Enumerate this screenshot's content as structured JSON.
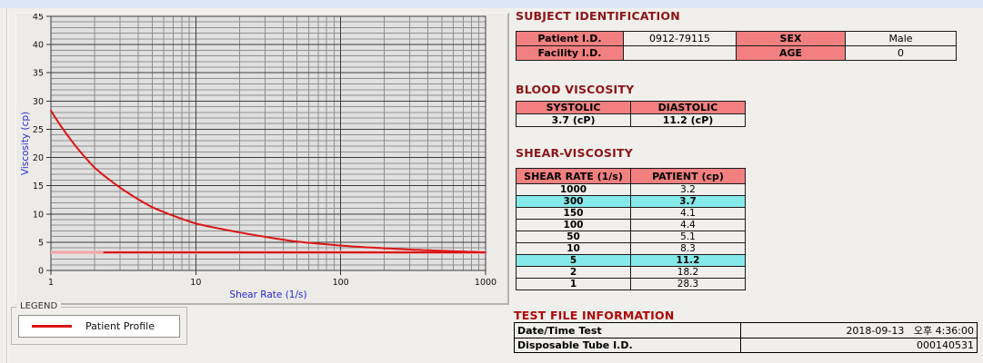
{
  "subject_identification": {
    "title": "SUBJECT IDENTIFICATION",
    "patient_id_label": "Patient I.D.",
    "patient_id": "0912-79115",
    "facility_id_label": "Facility I.D.",
    "facility_id": "",
    "sex_label": "SEX",
    "sex": "Male",
    "age_label": "AGE",
    "age": "0"
  },
  "blood_viscosity": {
    "title": "BLOOD VISCOSITY",
    "systolic_label": "SYSTOLIC",
    "diastolic_label": "DIASTOLIC",
    "systolic_value": "3.7 (cP)",
    "diastolic_value": "11.2 (cP)"
  },
  "shear_viscosity": {
    "title": "SHEAR-VISCOSITY",
    "col_shear_rate": "SHEAR RATE (1/s)",
    "col_patient": "PATIENT (cp)",
    "rows": [
      {
        "rate": "1000",
        "value": "3.2",
        "highlight": false
      },
      {
        "rate": "300",
        "value": "3.7",
        "highlight": true
      },
      {
        "rate": "150",
        "value": "4.1",
        "highlight": false
      },
      {
        "rate": "100",
        "value": "4.4",
        "highlight": false
      },
      {
        "rate": "50",
        "value": "5.1",
        "highlight": false
      },
      {
        "rate": "10",
        "value": "8.3",
        "highlight": false
      },
      {
        "rate": "5",
        "value": "11.2",
        "highlight": true
      },
      {
        "rate": "2",
        "value": "18.2",
        "highlight": false
      },
      {
        "rate": "1",
        "value": "28.3",
        "highlight": false
      }
    ],
    "highlight_color": "#86e9e9"
  },
  "test_file_information": {
    "title": "TEST FILE INFORMATION",
    "rows": [
      {
        "label": "Date/Time Test",
        "value": "2018-09-13   오후 4:36:00"
      },
      {
        "label": "Disposable Tube I.D.",
        "value": "000140531"
      }
    ]
  },
  "legend": {
    "group_label": "LEGEND",
    "item_label": "Patient Profile",
    "line_color": "#dd1414"
  },
  "colors": {
    "table_header_bg": "#f28080",
    "heading_red": "#8d1515",
    "axis_label_blue": "#2a2ad0"
  },
  "chart_data": {
    "type": "line",
    "title": "",
    "xlabel": "Shear Rate (1/s)",
    "ylabel": "Viscosity (cp)",
    "x_scale": "log",
    "xlim": [
      1,
      1000
    ],
    "ylim": [
      0,
      45
    ],
    "y_major_step": 5,
    "y_minor_step": 1,
    "x_ticks": [
      1,
      10,
      100,
      1000
    ],
    "grid": true,
    "plot_bg": "#e0e0e0",
    "legend_position": "below-left",
    "series": [
      {
        "name": "Patient Profile",
        "color": "#dd1414",
        "points": [
          [
            1,
            28.3
          ],
          [
            2,
            18.2
          ],
          [
            5,
            11.2
          ],
          [
            10,
            8.3
          ],
          [
            50,
            5.1
          ],
          [
            100,
            4.4
          ],
          [
            150,
            4.1
          ],
          [
            300,
            3.7
          ],
          [
            1000,
            3.2
          ]
        ]
      }
    ],
    "reference_line": {
      "y": 3.2,
      "color": "#cf1010",
      "halo_color": "#ef8f8f",
      "band_color": "#f5bcbc",
      "dark_from_x": 2.3
    }
  }
}
